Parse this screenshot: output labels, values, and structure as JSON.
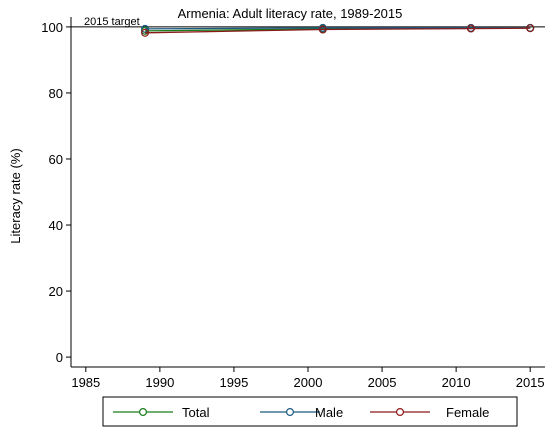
{
  "chart_data": {
    "type": "line",
    "title": "Armenia: Adult literacy rate, 1989-2015",
    "xlabel": "",
    "ylabel": "Literacy rate (%)",
    "xlim": [
      1984,
      2016
    ],
    "ylim": [
      -3,
      103
    ],
    "x_ticks": [
      1985,
      1990,
      1995,
      2000,
      2005,
      2010,
      2015
    ],
    "y_ticks": [
      0,
      20,
      40,
      60,
      80,
      100
    ],
    "grid": false,
    "legend_position": "bottom",
    "reference_line": {
      "label": "2015 target",
      "value": 100
    },
    "series": [
      {
        "name": "Total",
        "color": "#1a7c1a",
        "x": [
          1989,
          2001,
          2011,
          2015
        ],
        "values": [
          98.8,
          99.4,
          99.6,
          99.7
        ]
      },
      {
        "name": "Male",
        "color": "#1c5a82",
        "x": [
          1989,
          2001,
          2011,
          2015
        ],
        "values": [
          99.4,
          99.7,
          99.7,
          99.7
        ]
      },
      {
        "name": "Female",
        "color": "#8b1a1a",
        "x": [
          1989,
          2001,
          2011,
          2015
        ],
        "values": [
          98.2,
          99.2,
          99.5,
          99.6
        ]
      }
    ]
  }
}
